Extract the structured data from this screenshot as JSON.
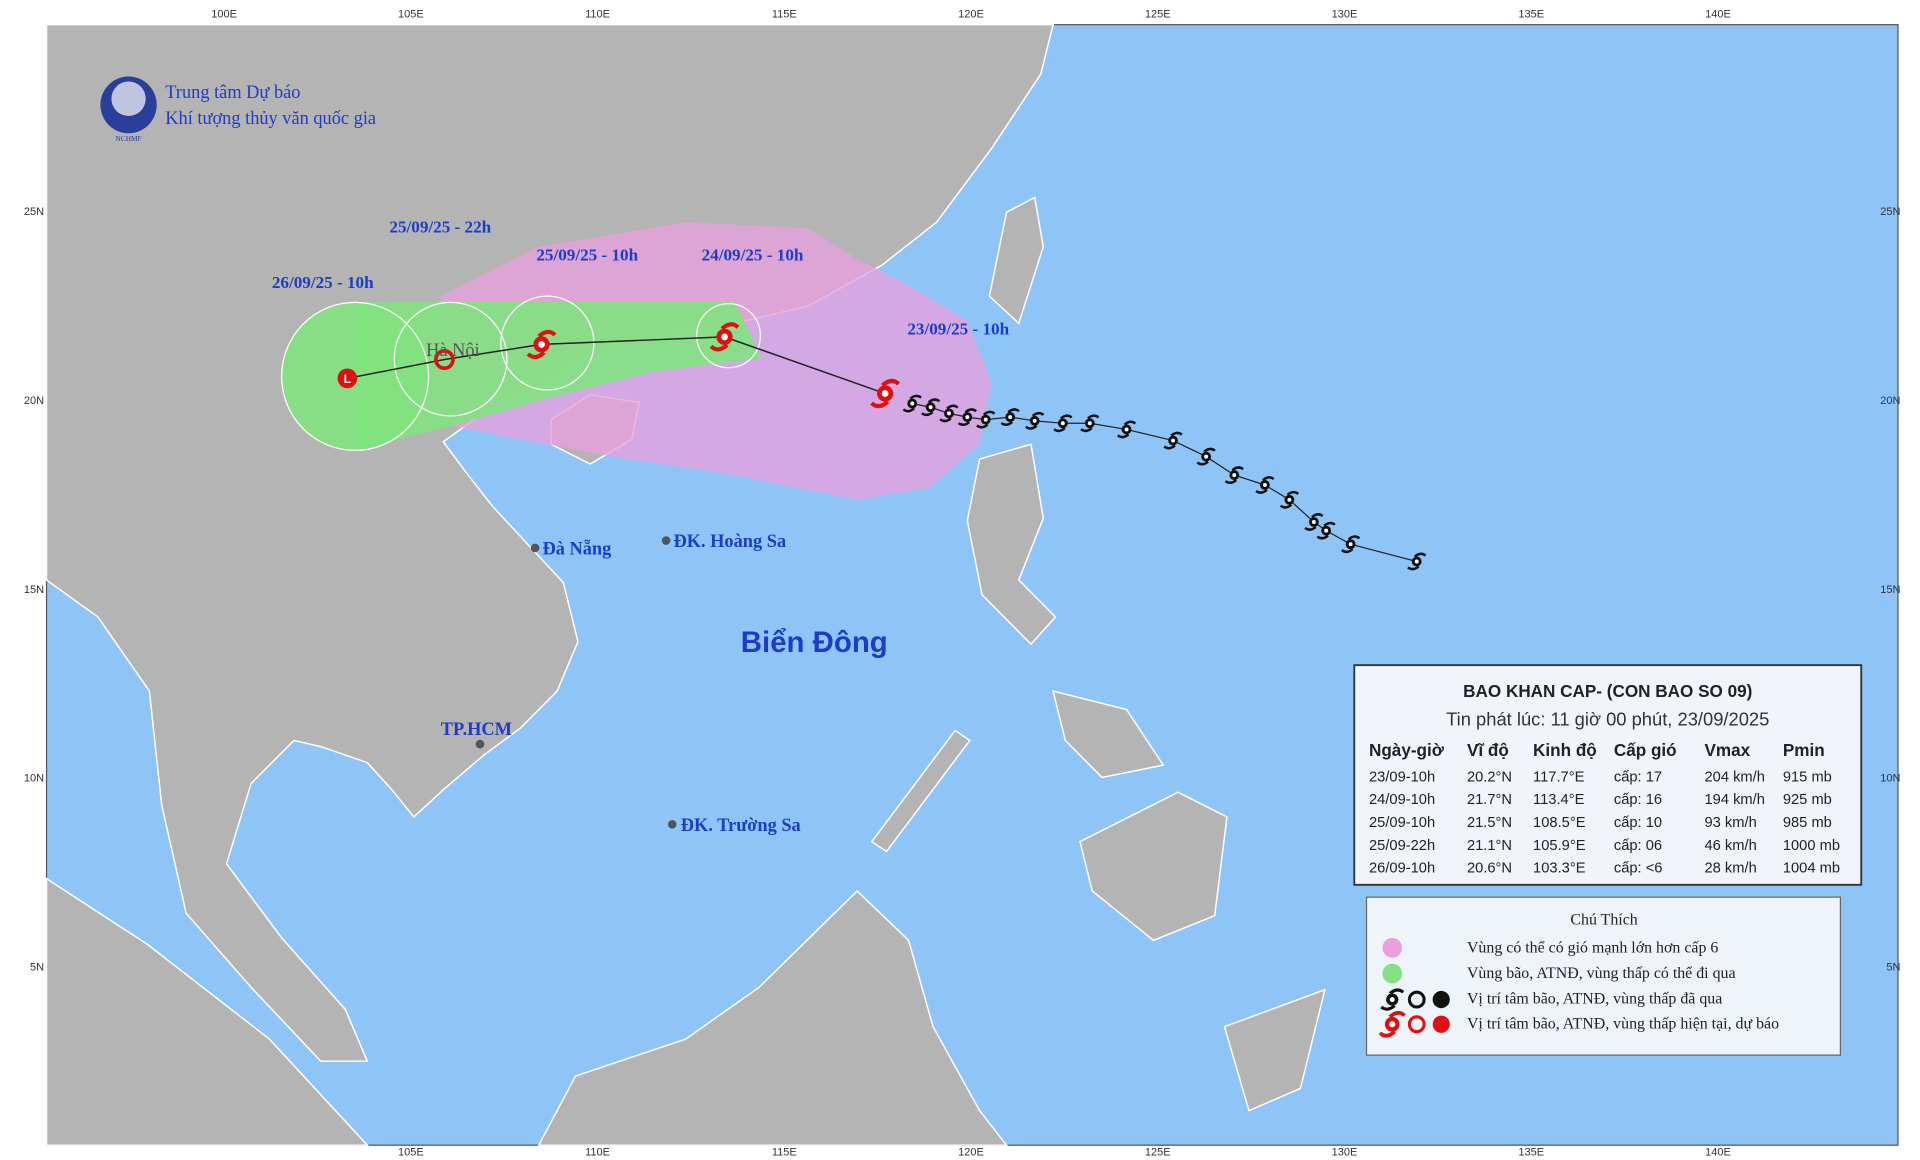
{
  "header": {
    "org_line1": "Trung tâm Dự báo",
    "org_line2": "Khí tượng thủy văn quốc gia",
    "logo_text": "NCHMF"
  },
  "axes": {
    "top": [
      "100E",
      "105E",
      "110E",
      "115E",
      "120E",
      "125E",
      "130E",
      "135E",
      "140E"
    ],
    "bottom": [
      "105E",
      "110E",
      "115E",
      "120E",
      "125E",
      "130E",
      "135E",
      "140E"
    ],
    "left": [
      "25N",
      "20N",
      "15N",
      "10N",
      "5N"
    ],
    "right": [
      "25N",
      "20N",
      "15N",
      "10N",
      "5N"
    ]
  },
  "places": [
    {
      "label": "Hà Nội"
    },
    {
      "label": "Đà Nẵng"
    },
    {
      "label": "ĐK. Hoàng Sa"
    },
    {
      "label": "TP.HCM"
    },
    {
      "label": "ĐK. Trường Sa"
    }
  ],
  "sea_label": "Biển Đông",
  "forecast_labels": [
    "23/09/25 - 10h",
    "24/09/25 - 10h",
    "25/09/25 - 10h",
    "25/09/25 - 22h",
    "26/09/25 - 10h"
  ],
  "bulletin": {
    "title": "BAO KHAN CAP- (CON BAO SO 09)",
    "issued": "Tin phát lúc: 11 giờ 00 phút, 23/09/2025",
    "columns": [
      "Ngày-giờ",
      "Vĩ độ",
      "Kinh độ",
      "Cấp gió",
      "Vmax",
      "Pmin"
    ],
    "rows": [
      [
        "23/09-10h",
        "20.2°N",
        "117.7°E",
        "cấp: 17",
        "204 km/h",
        "915 mb"
      ],
      [
        "24/09-10h",
        "21.7°N",
        "113.4°E",
        "cấp: 16",
        "194 km/h",
        "925 mb"
      ],
      [
        "25/09-10h",
        "21.5°N",
        "108.5°E",
        "cấp: 10",
        "93 km/h",
        "985 mb"
      ],
      [
        "25/09-22h",
        "21.1°N",
        "105.9°E",
        "cấp: 06",
        "46 km/h",
        "1000 mb"
      ],
      [
        "26/09-10h",
        "20.6°N",
        "103.3°E",
        "cấp: <6",
        "28 km/h",
        "1004 mb"
      ]
    ]
  },
  "legend": {
    "title": "Chú Thích",
    "items": [
      "Vùng có thể có gió mạnh lớn hơn cấp 6",
      "Vùng bão, ATNĐ, vùng thấp có thể đi qua",
      "Vị trí tâm bão, ATNĐ, vùng thấp đã qua",
      "Vị trí tâm bão, ATNĐ, vùng thấp hiện tại, dự báo"
    ]
  }
}
